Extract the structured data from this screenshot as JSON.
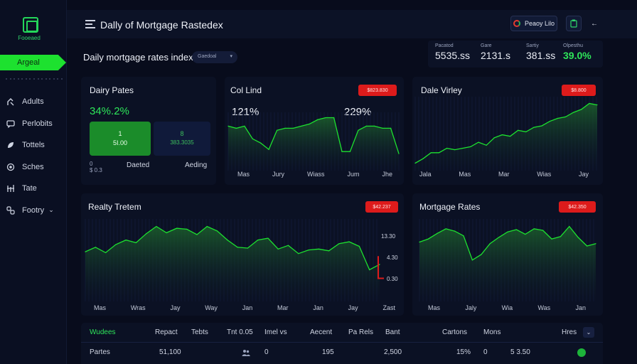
{
  "app": {
    "logo_text": "Fooeaed",
    "title": "Dally of Mortgage Rastedex",
    "btn_primary": "Peaoy Lilo"
  },
  "sidebar": {
    "active": "Argeal",
    "items": [
      {
        "label": "Adults",
        "icon": "user-icon"
      },
      {
        "label": "Perlobits",
        "icon": "chat-icon"
      },
      {
        "label": "Tottels",
        "icon": "leaf-icon"
      },
      {
        "label": "Sches",
        "icon": "globe-icon"
      },
      {
        "label": "Tate",
        "icon": "bars-icon"
      },
      {
        "label": "Footry",
        "icon": "chain-icon",
        "chevron": "⌄"
      }
    ]
  },
  "subheader": {
    "title": "Daily mortgage rates index",
    "select_value": "Gaedoal"
  },
  "stats": [
    {
      "label": "Pacatod",
      "value": "5535.ss"
    },
    {
      "label": "Gare",
      "value": "2131.s"
    },
    {
      "label": "Sartiy",
      "value": "381.ss"
    },
    {
      "label": "Olpesthu",
      "value": "39.0%"
    }
  ],
  "cards": {
    "daily_rates": {
      "title": "Dairy Pates",
      "value": "34%.2%",
      "box_a_top": "1",
      "box_a_bottom": "5I.00",
      "box_b_top": "8",
      "box_b_bottom": "383.3035",
      "foot_left_top": "0",
      "foot_left_bottom": "$ 0.3",
      "foot_mid": "Daeted",
      "foot_right": "Aeding"
    },
    "col_lind": {
      "title": "Col Lind",
      "badge": "$823.830",
      "value_a": "121%",
      "value_b": "229%",
      "axis": [
        "Mas",
        "Jury",
        "Wiass",
        "Jum",
        "Jhe"
      ]
    },
    "dale_virley": {
      "title": "Dale Virley",
      "badge": "$8.800",
      "axis": [
        "Jala",
        "Mas",
        "Mar",
        "Wias",
        "Jay"
      ]
    },
    "reality_tretem": {
      "title": "Realty Tretem",
      "badge": "$42.237",
      "y_ticks": [
        "13.30",
        "4.30",
        "0.30"
      ],
      "axis": [
        "Mas",
        "Wras",
        "Jay",
        "Way",
        "Jan",
        "Mar",
        "Jan",
        "Jay",
        "Zast"
      ]
    },
    "mortgage_rates": {
      "title": "Mortgage Rates",
      "badge": "$42.350",
      "axis": [
        "Mas",
        "Jaly",
        "Wia",
        "Was",
        "Jan"
      ]
    }
  },
  "table": {
    "headers": [
      "Wudees",
      "Repact",
      "Tebts",
      "Tnt 0.05",
      "Imel vs",
      "Aecent",
      "Pa Rels",
      "Bant",
      "Cartons",
      "Mons",
      "Hres"
    ],
    "row": [
      "Partes",
      "51,100",
      "",
      "",
      "0",
      "195",
      "",
      "2,500",
      "15%",
      "0",
      "5 3.50"
    ]
  },
  "colors": {
    "accent": "#1de12f",
    "alert": "#dd1b1b",
    "background": "#080c1c",
    "card": "#0b1124"
  },
  "chart_data": [
    {
      "type": "area",
      "title": "Col Lind",
      "series": [
        {
          "values": [
            2.1,
            2.0,
            2.1,
            1.5,
            1.3,
            1.0,
            1.9,
            2.0,
            2.0,
            2.1,
            2.2,
            2.4,
            2.5,
            2.5,
            0.9,
            0.9,
            1.9,
            2.1,
            2.1,
            2.0,
            2.0,
            0.8
          ]
        }
      ]
    },
    {
      "type": "area",
      "title": "Dale Virley",
      "series": [
        {
          "values": [
            0.5,
            0.8,
            1.2,
            1.2,
            1.5,
            1.4,
            1.5,
            1.6,
            1.9,
            1.7,
            2.2,
            2.4,
            2.3,
            2.7,
            2.6,
            2.9,
            3.0,
            3.3,
            3.5,
            3.6,
            3.9,
            4.1,
            4.5,
            4.4
          ]
        }
      ]
    },
    {
      "type": "area",
      "title": "Realty Tretem",
      "series": [
        {
          "values": [
            5.5,
            6.0,
            5.4,
            6.3,
            6.8,
            6.5,
            7.5,
            8.3,
            7.6,
            8.1,
            8.0,
            7.4,
            8.3,
            7.8,
            6.8,
            6.0,
            5.9,
            6.8,
            7.0,
            5.8,
            6.2,
            5.3,
            5.7,
            5.8,
            5.6,
            6.4,
            6.6,
            6.1,
            3.5,
            4.1
          ]
        }
      ]
    },
    {
      "type": "area",
      "title": "Mortgage Rates",
      "series": [
        {
          "values": [
            7.6,
            8.0,
            8.7,
            9.3,
            9.0,
            8.4,
            5.3,
            6.0,
            7.4,
            8.2,
            8.9,
            9.2,
            8.6,
            9.3,
            9.1,
            8.0,
            8.3,
            9.6,
            8.2,
            7.1,
            7.4
          ]
        }
      ]
    }
  ]
}
